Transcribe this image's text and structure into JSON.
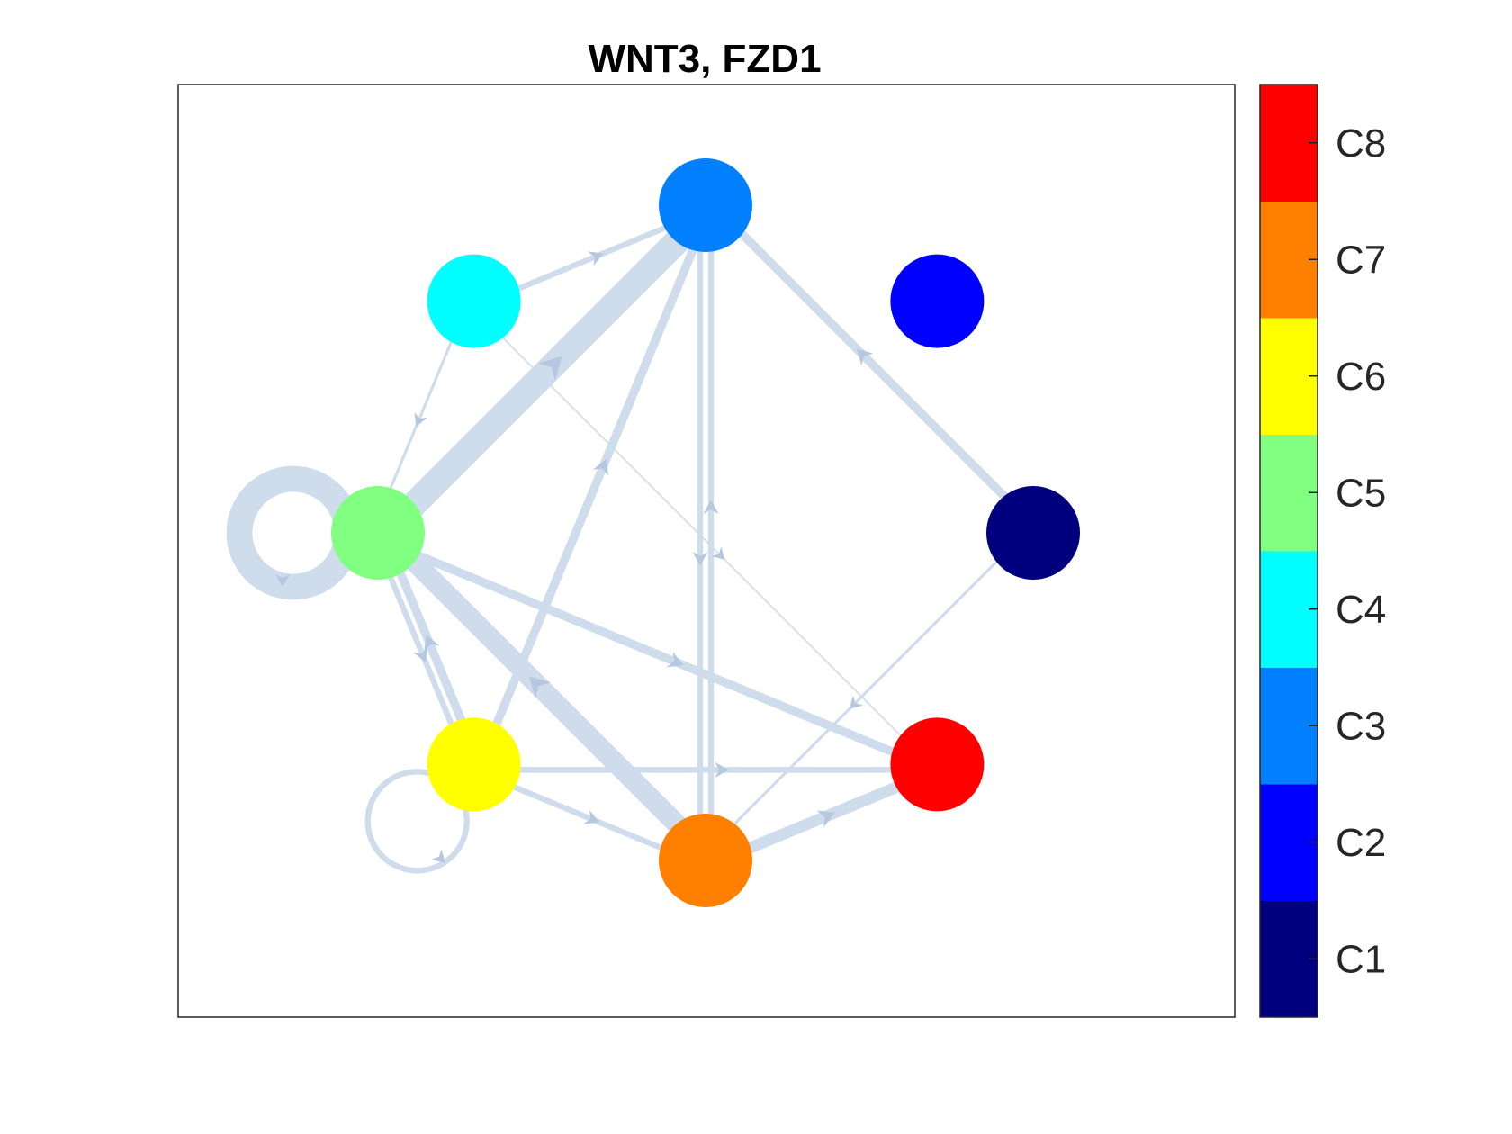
{
  "title": "WNT3, FZD1",
  "edge_color": "#cfdcec",
  "nodes": [
    {
      "id": "C1",
      "color": "#00007f"
    },
    {
      "id": "C2",
      "color": "#0000ff"
    },
    {
      "id": "C3",
      "color": "#0080ff"
    },
    {
      "id": "C4",
      "color": "#00ffff"
    },
    {
      "id": "C5",
      "color": "#80ff80"
    },
    {
      "id": "C6",
      "color": "#ffff00"
    },
    {
      "id": "C7",
      "color": "#ff8000"
    },
    {
      "id": "C8",
      "color": "#ff0000"
    }
  ],
  "edges": [
    {
      "source": "C5",
      "target": "C5",
      "weight": 9
    },
    {
      "source": "C6",
      "target": "C6",
      "weight": 2
    },
    {
      "source": "C5",
      "target": "C3",
      "weight": 9
    },
    {
      "source": "C4",
      "target": "C3",
      "weight": 2
    },
    {
      "source": "C4",
      "target": "C5",
      "weight": 1
    },
    {
      "source": "C6",
      "target": "C3",
      "weight": 3
    },
    {
      "source": "C1",
      "target": "C3",
      "weight": 3
    },
    {
      "source": "C7",
      "target": "C3",
      "weight": 2
    },
    {
      "source": "C3",
      "target": "C7",
      "weight": 2
    },
    {
      "source": "C4",
      "target": "C8",
      "weight": 0.5
    },
    {
      "source": "C5",
      "target": "C8",
      "weight": 3
    },
    {
      "source": "C5",
      "target": "C6",
      "weight": 2
    },
    {
      "source": "C6",
      "target": "C5",
      "weight": 3
    },
    {
      "source": "C7",
      "target": "C5",
      "weight": 7
    },
    {
      "source": "C6",
      "target": "C8",
      "weight": 2
    },
    {
      "source": "C6",
      "target": "C7",
      "weight": 2
    },
    {
      "source": "C1",
      "target": "C7",
      "weight": 1
    },
    {
      "source": "C7",
      "target": "C8",
      "weight": 4
    }
  ],
  "colorbar": {
    "labels": [
      "C1",
      "C2",
      "C3",
      "C4",
      "C5",
      "C6",
      "C7",
      "C8"
    ]
  }
}
